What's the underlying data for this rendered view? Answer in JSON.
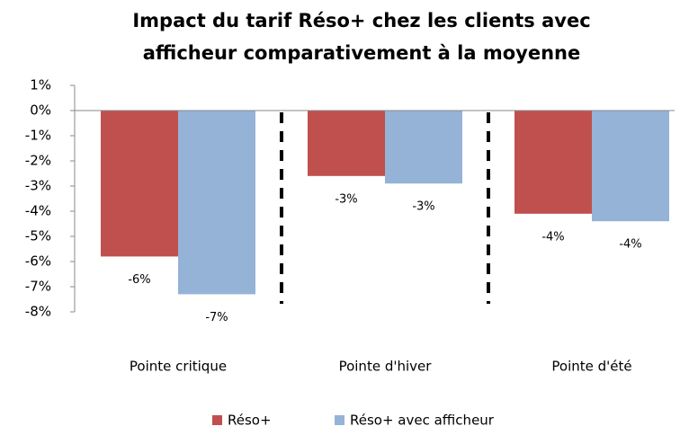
{
  "chart_data": {
    "type": "bar",
    "title": [
      "Impact du tarif Réso+ chez les clients avec",
      "afficheur comparativement à la moyenne"
    ],
    "categories": [
      "Pointe critique",
      "Pointe d'hiver",
      "Pointe d'été"
    ],
    "series": [
      {
        "name": "Réso+",
        "color": "#c0504d",
        "values": [
          -5.8,
          -2.6,
          -4.1
        ],
        "value_labels": [
          "-6%",
          "-3%",
          "-4%"
        ]
      },
      {
        "name": "Réso+ avec afficheur",
        "color": "#95b3d7",
        "values": [
          -7.3,
          -2.9,
          -4.4
        ],
        "value_labels": [
          "-7%",
          "-3%",
          "-4%"
        ]
      }
    ],
    "ylim": [
      -8,
      1
    ],
    "yticks": [
      {
        "value": 1,
        "label": "1%"
      },
      {
        "value": 0,
        "label": "0%"
      },
      {
        "value": -1,
        "label": "-1%"
      },
      {
        "value": -2,
        "label": "-2%"
      },
      {
        "value": -3,
        "label": "-3%"
      },
      {
        "value": -4,
        "label": "-4%"
      },
      {
        "value": -5,
        "label": "-5%"
      },
      {
        "value": -6,
        "label": "-6%"
      },
      {
        "value": -7,
        "label": "-7%"
      },
      {
        "value": -8,
        "label": "-8%"
      }
    ],
    "grid": false,
    "legend": "bottom"
  }
}
